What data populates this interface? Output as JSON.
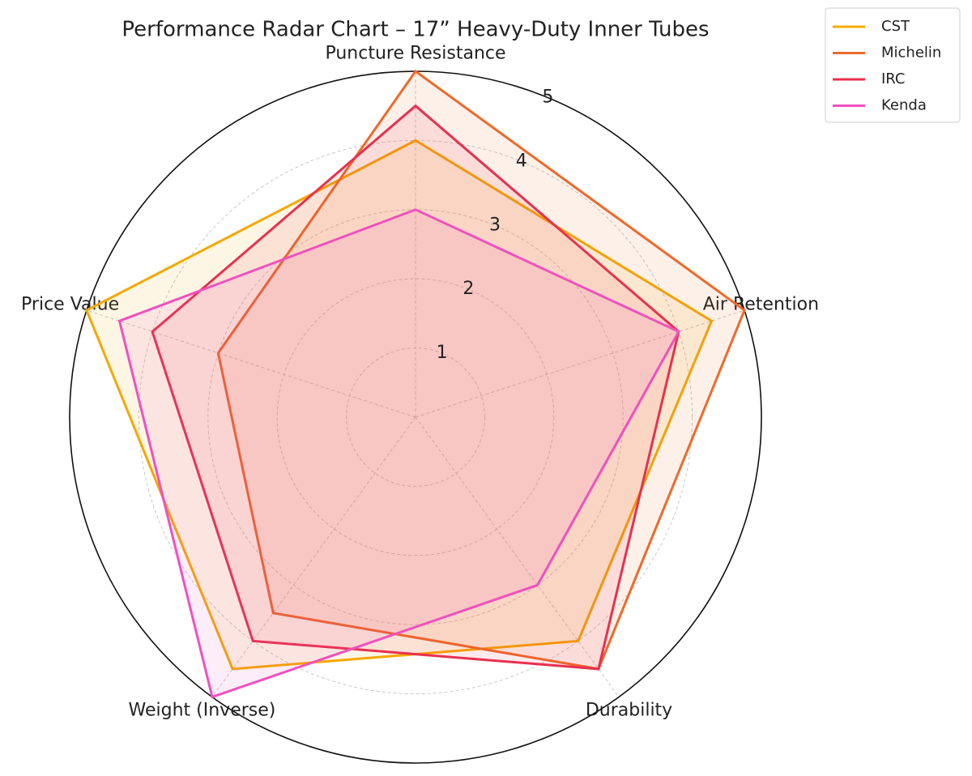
{
  "chart_data": {
    "type": "radar",
    "title": "Performance Radar Chart – 17” Heavy-Duty Inner Tubes",
    "categories": [
      "Puncture Resistance",
      "Air Retention",
      "Durability",
      "Weight (Inverse)",
      "Price Value"
    ],
    "ylim": [
      0,
      5
    ],
    "yticks": [
      1,
      2,
      3,
      4,
      5
    ],
    "grid": true,
    "legend": "upper right",
    "series": [
      {
        "name": "CST",
        "color": "#f5a800",
        "values": [
          4,
          4.5,
          4,
          4.5,
          5
        ]
      },
      {
        "name": "Michelin",
        "color": "#ee6a2a",
        "values": [
          5,
          5,
          4.5,
          3.5,
          3
        ]
      },
      {
        "name": "IRC",
        "color": "#e8304f",
        "values": [
          4.5,
          4,
          4.5,
          4,
          4
        ]
      },
      {
        "name": "Kenda",
        "color": "#f050c0",
        "values": [
          3,
          4,
          3,
          5,
          4.5
        ]
      }
    ]
  }
}
